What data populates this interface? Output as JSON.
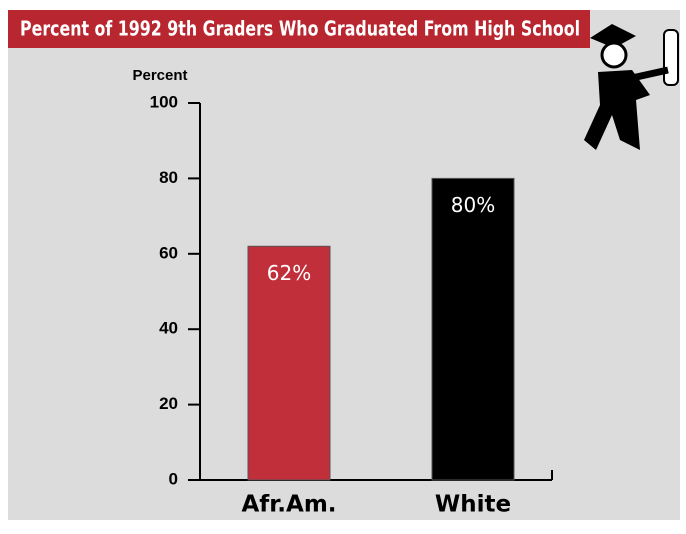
{
  "chart_data": {
    "type": "bar",
    "title": "Percent of 1992 9th Graders Who Graduated From High School",
    "y_label": "Percent",
    "categories": [
      "Afr.Am.",
      "White"
    ],
    "values": [
      62,
      80
    ],
    "value_labels": [
      "62%",
      "80%"
    ],
    "colors": [
      "#c1303a",
      "#000000"
    ],
    "ylim": [
      0,
      100
    ],
    "yticks": [
      0,
      20,
      40,
      60,
      80,
      100
    ]
  }
}
